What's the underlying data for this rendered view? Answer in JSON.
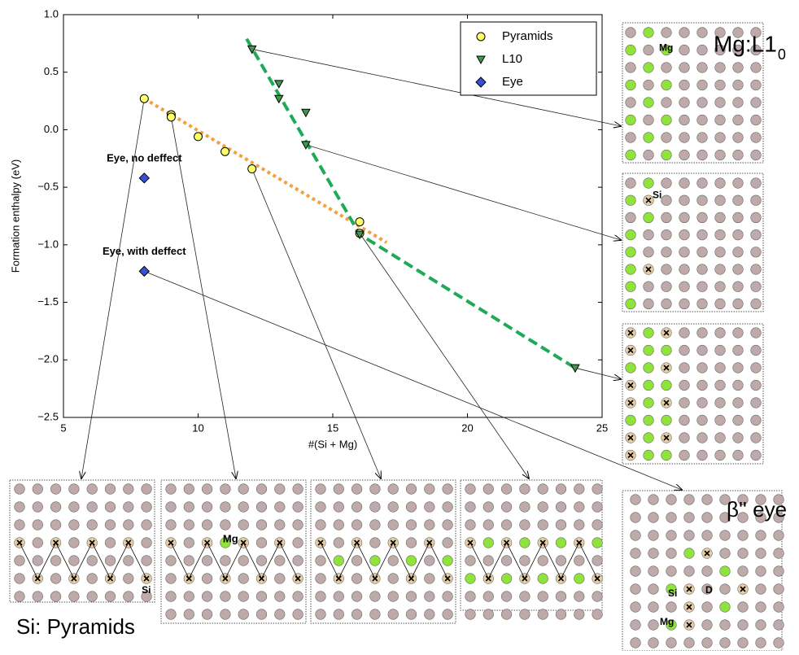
{
  "chart_data": {
    "type": "scatter",
    "xlabel": "#(Si + Mg)",
    "ylabel": "Formation enthalpy (eV)",
    "xlim": [
      5,
      25
    ],
    "xticks": [
      5,
      10,
      15,
      20,
      25
    ],
    "ylim": [
      -2.5,
      1.0
    ],
    "yticks": [
      {
        "value": 1.0,
        "label": "1.0"
      },
      0.5,
      {
        "value": 0.0,
        "label": "0.0"
      },
      {
        "value": -0.5,
        "label": "−0.5"
      },
      {
        "value": -1.0,
        "label": "−1.0"
      },
      {
        "value": -1.5,
        "label": "−1.5"
      },
      {
        "value": -2.0,
        "label": "−2.0"
      },
      {
        "value": -2.5,
        "label": "−2.5"
      }
    ],
    "legend": "upper right",
    "series": [
      {
        "name": "Pyramids",
        "color": "#ffff66",
        "marker": "circle",
        "x": [
          8,
          9,
          9,
          10,
          11,
          12,
          16,
          16
        ],
        "values": [
          0.27,
          0.13,
          0.11,
          -0.06,
          -0.19,
          -0.34,
          -0.8,
          -0.9
        ]
      },
      {
        "name": "L10",
        "color": "#3c9a4a",
        "marker": "triangle_down",
        "x": [
          12,
          13,
          13,
          14,
          14,
          16,
          24
        ],
        "values": [
          0.7,
          0.4,
          0.27,
          0.15,
          -0.13,
          -0.91,
          -2.07
        ]
      },
      {
        "name": "Eye",
        "color": "#3a4fd8",
        "marker": "diamond",
        "x": [
          8,
          8
        ],
        "values": [
          -0.42,
          -1.23
        ]
      }
    ],
    "fit_lines": [
      {
        "color": "#f4a040",
        "x": [
          8,
          17
        ],
        "values": [
          0.27,
          -0.98
        ]
      },
      {
        "color": "#1faa55",
        "x": [
          11.8,
          16,
          24
        ],
        "values": [
          0.79,
          -0.91,
          -2.07
        ]
      }
    ],
    "annotations": [
      "Eye, no deffect",
      "Eye, with deffect"
    ]
  },
  "panels": {
    "l10": {
      "title": "Mg:L1",
      "title_sub": "0",
      "labels": [
        "Mg"
      ]
    },
    "l10_si": {
      "labels": [
        "Si"
      ]
    },
    "pyramids": {
      "title": "Si: Pyramids",
      "labels": [
        "Si",
        "Mg"
      ]
    },
    "eye": {
      "title": "β'' eye",
      "labels": [
        "Si",
        "D",
        "Mg"
      ]
    }
  }
}
